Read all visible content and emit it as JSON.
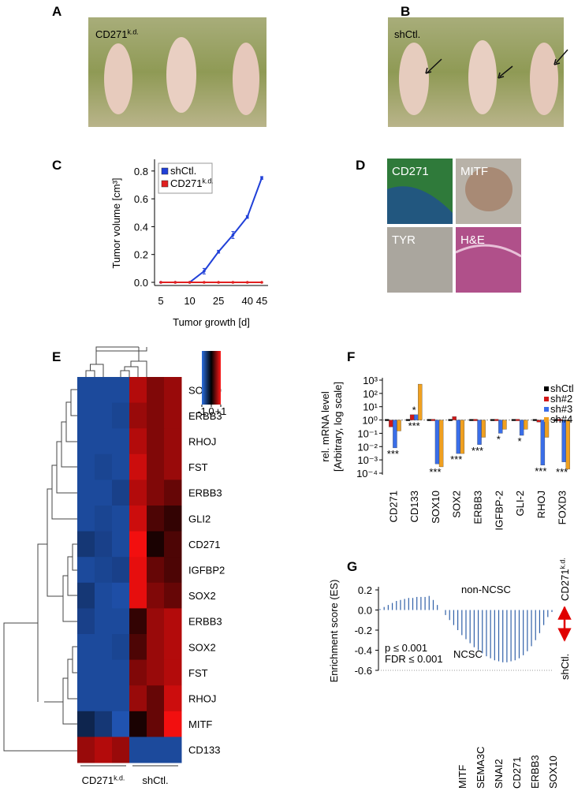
{
  "panels": [
    "A",
    "B",
    "C",
    "D",
    "E",
    "F",
    "G"
  ],
  "photos": {
    "a": {
      "name": "CD271",
      "name_sup": "k.d."
    },
    "b": {
      "name": "shCtl."
    },
    "d": [
      "CD271",
      "MITF",
      "TYR",
      "H&E"
    ]
  },
  "chart_data": [
    {
      "type": "line",
      "y_label": "Tumor volume [cm³]",
      "x_label": "Tumor growth [d]",
      "categories": [
        "5",
        null,
        "10",
        null,
        "25",
        null,
        "40",
        "45"
      ],
      "series": [
        {
          "name": "shCtl.",
          "color": "#2040d8",
          "values": [
            0,
            0,
            0,
            0.08,
            0.22,
            0.34,
            0.47,
            0.75
          ],
          "errors": [
            0.003,
            0.003,
            0.003,
            0.02,
            0.01,
            0.025,
            0.01,
            0.01
          ]
        },
        {
          "name": "CD271",
          "name_sup": "k.d.",
          "color": "#e02020",
          "values": [
            0,
            0,
            0,
            0,
            0,
            0,
            0,
            0
          ]
        }
      ],
      "ylim": [
        0,
        0.85
      ],
      "yticks": [
        {
          "value": 0,
          "label": "0.0"
        },
        0.2,
        0.4,
        0.6,
        0.8
      ]
    },
    {
      "type": "heatmap",
      "rows": [
        "SOX10",
        "ERBB3",
        "RHOJ",
        "FST",
        "ERBB3",
        "GLI2",
        "CD271",
        "IGFBP2",
        "SOX2",
        "ERBB3",
        "SOX2",
        "FST",
        "RHOJ",
        "MITF",
        "CD133"
      ],
      "column_groups": [
        {
          "name": "CD271",
          "name_sup": "k.d."
        },
        {
          "name": "shCtl."
        }
      ],
      "values": [
        [
          -0.8,
          -0.8,
          -0.8,
          0.7,
          0.5,
          0.6
        ],
        [
          -0.8,
          -0.8,
          -0.75,
          0.6,
          0.5,
          0.6
        ],
        [
          -0.8,
          -0.8,
          -0.8,
          0.7,
          0.5,
          0.6
        ],
        [
          -0.8,
          -0.75,
          -0.8,
          0.8,
          0.5,
          0.6
        ],
        [
          -0.8,
          -0.8,
          -0.7,
          0.7,
          0.5,
          0.4
        ],
        [
          -0.8,
          -0.75,
          -0.8,
          0.8,
          0.3,
          0.2
        ],
        [
          -0.6,
          -0.7,
          -0.8,
          0.95,
          0.1,
          0.3
        ],
        [
          -0.8,
          -0.75,
          -0.7,
          0.9,
          0.4,
          0.3
        ],
        [
          -0.6,
          -0.8,
          -0.85,
          0.9,
          0.5,
          0.4
        ],
        [
          -0.7,
          -0.8,
          -0.8,
          0.2,
          0.6,
          0.7
        ],
        [
          -0.8,
          -0.8,
          -0.75,
          0.3,
          0.6,
          0.7
        ],
        [
          -0.8,
          -0.8,
          -0.8,
          0.5,
          0.6,
          0.7
        ],
        [
          -0.8,
          -0.8,
          -0.8,
          0.6,
          0.4,
          0.8
        ],
        [
          -0.4,
          -0.6,
          -0.9,
          0.1,
          0.4,
          0.95
        ],
        [
          0.6,
          0.7,
          0.6,
          -0.8,
          -0.8,
          -0.8
        ]
      ],
      "colorbar": {
        "lim": [
          -1,
          1
        ],
        "ticks": [
          -1,
          0,
          {
            "value": 1,
            "label": "+1"
          }
        ]
      }
    },
    {
      "type": "bar",
      "log_scale": true,
      "y_label": [
        "rel. mRNA level",
        "[Arbitrary, log scale]"
      ],
      "categories": [
        "CD271",
        "CD133",
        "SOX10",
        "SOX2",
        "ERBB3",
        "IGFBP-2",
        "GLI-2",
        "RHOJ",
        "FOXD3"
      ],
      "series": [
        {
          "name": "shCtl.",
          "color": "#000000",
          "values": [
            1,
            1,
            1,
            1,
            1,
            1,
            1,
            1,
            1
          ]
        },
        {
          "name": "sh#2",
          "color": "#d01818",
          "values": [
            0.3,
            2.5,
            1,
            1.8,
            0.9,
            1,
            1,
            0.7,
            1
          ]
        },
        {
          "name": "sh#3",
          "color": "#3a6ee8",
          "values": [
            0.008,
            2.5,
            0.0005,
            0.003,
            0.014,
            0.1,
            0.07,
            0.0004,
            0.0007
          ]
        },
        {
          "name": "sh#4",
          "color": "#f0a020",
          "values": [
            0.15,
            500,
            0.0003,
            0.003,
            0.05,
            0.2,
            0.2,
            0.05,
            0.0002
          ]
        }
      ],
      "ylim": [
        0.0001,
        1000
      ],
      "yticks": [
        {
          "value": 1000,
          "label": "10³"
        },
        {
          "value": 100,
          "label": "10²"
        },
        {
          "value": 10,
          "label": "10¹"
        },
        {
          "value": 1,
          "label": "10⁰"
        },
        {
          "value": 0.1,
          "label": "10⁻¹"
        },
        {
          "value": 0.01,
          "label": "10⁻²"
        },
        {
          "value": 0.001,
          "label": "10⁻³"
        },
        {
          "value": 0.0001,
          "label": "10⁻⁴"
        }
      ],
      "annotations": [
        [
          "***"
        ],
        [
          "*",
          "***"
        ],
        [
          "***"
        ],
        [
          "***"
        ],
        [
          "***"
        ],
        [
          "*"
        ],
        [
          "*"
        ],
        [
          "***"
        ],
        [
          "***"
        ]
      ]
    },
    {
      "type": "enrichment",
      "y_label": "Enrichment score (ES)",
      "color": "#3060a8",
      "values": [
        0.01,
        0.03,
        0.05,
        0.07,
        0.09,
        0.1,
        0.11,
        0.12,
        0.12,
        0.13,
        0.13,
        0.13,
        0.14,
        0.1,
        0.05,
        0,
        -0.05,
        -0.1,
        -0.15,
        -0.2,
        -0.25,
        -0.29,
        -0.33,
        -0.37,
        -0.4,
        -0.43,
        -0.46,
        -0.48,
        -0.5,
        -0.51,
        -0.52,
        -0.52,
        -0.51,
        -0.5,
        -0.48,
        -0.45,
        -0.41,
        -0.36,
        -0.3,
        -0.23,
        -0.15,
        -0.07,
        -0.02
      ],
      "ylim": [
        -0.6,
        0.2
      ],
      "yticks": [
        0.2,
        {
          "value": 0,
          "label": "0.0"
        },
        -0.2,
        -0.4,
        -0.6
      ],
      "annotations": [
        "non-NCSC",
        "NCSC"
      ],
      "stats": [
        "p ≤ 0.001",
        "FDR ≤ 0.001"
      ],
      "phenotypes": [
        {
          "name": "CD271",
          "name_sup": "k.d."
        },
        {
          "name": "shCtl."
        }
      ],
      "genes": [
        "MITF",
        "SEMA3C",
        "SNAI2",
        "CD271",
        "ERBB3",
        "SOX10"
      ]
    }
  ]
}
